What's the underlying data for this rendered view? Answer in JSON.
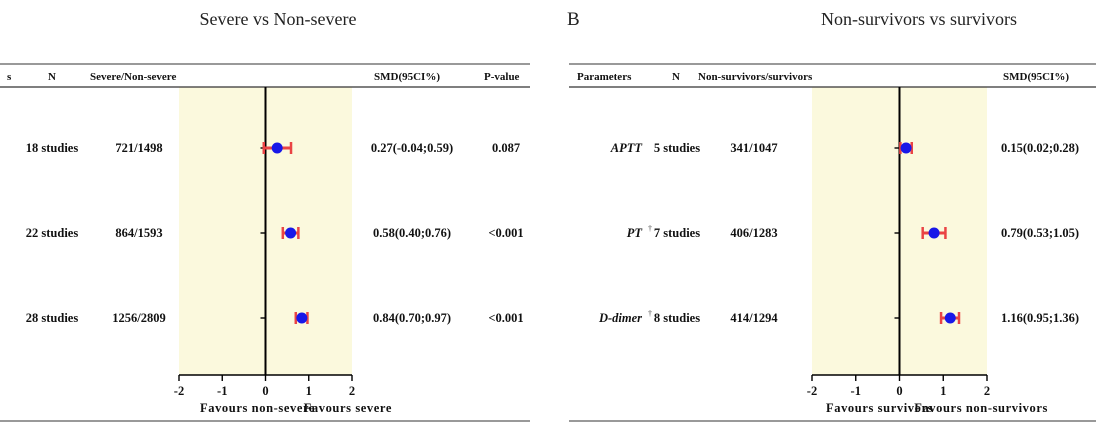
{
  "colors": {
    "favour_band": "#fbf9dd",
    "point": "#1818e8",
    "ci": "#ea4444",
    "axis": "#000000"
  },
  "chart_data": [
    {
      "type": "forest",
      "panel_label": "",
      "title": "Severe vs Non-severe",
      "headers": {
        "parameters": "s",
        "n": "N",
        "groups": "Severe/Non-severe",
        "smd": "SMD(95CI%)",
        "p": "P-value"
      },
      "xlim": [
        -2,
        2
      ],
      "ticks": [
        "-2",
        "-1",
        "0",
        "1",
        "2"
      ],
      "favours_left": "Favours non-severe",
      "favours_right": "Favours severe",
      "rows": [
        {
          "parameter": "",
          "marker": "",
          "n": "18 studies",
          "groups": "721/1498",
          "smd": 0.27,
          "lower": -0.04,
          "upper": 0.59,
          "smd_text": "0.27(-0.04;0.59)",
          "p_text": "0.087"
        },
        {
          "parameter": "",
          "marker": "",
          "n": "22 studies",
          "groups": "864/1593",
          "smd": 0.58,
          "lower": 0.4,
          "upper": 0.76,
          "smd_text": "0.58(0.40;0.76)",
          "p_text": "<0.001"
        },
        {
          "parameter": "",
          "marker": "",
          "n": "28 studies",
          "groups": "1256/2809",
          "smd": 0.84,
          "lower": 0.7,
          "upper": 0.97,
          "smd_text": "0.84(0.70;0.97)",
          "p_text": "<0.001"
        }
      ]
    },
    {
      "type": "forest",
      "panel_label": "B",
      "title": "Non-survivors vs survivors",
      "headers": {
        "parameters": "Parameters",
        "n": "N",
        "groups": "Non-survivors/survivors",
        "smd": "SMD(95CI%)",
        "p": ""
      },
      "xlim": [
        -2,
        2
      ],
      "ticks": [
        "-2",
        "-1",
        "0",
        "1",
        "2"
      ],
      "favours_left": "Favours survivors",
      "favours_right": "Favours non-survivors",
      "rows": [
        {
          "parameter": "APTT",
          "marker": "",
          "n": "5 studies",
          "groups": "341/1047",
          "smd": 0.15,
          "lower": 0.02,
          "upper": 0.28,
          "smd_text": "0.15(0.02;0.28)",
          "p_text": ""
        },
        {
          "parameter": "PT",
          "marker": "†",
          "n": "7 studies",
          "groups": "406/1283",
          "smd": 0.79,
          "lower": 0.53,
          "upper": 1.05,
          "smd_text": "0.79(0.53;1.05)",
          "p_text": ""
        },
        {
          "parameter": "D-dimer",
          "marker": "†",
          "n": "8 studies",
          "groups": "414/1294",
          "smd": 1.16,
          "lower": 0.95,
          "upper": 1.36,
          "smd_text": "1.16(0.95;1.36)",
          "p_text": ""
        }
      ]
    }
  ]
}
